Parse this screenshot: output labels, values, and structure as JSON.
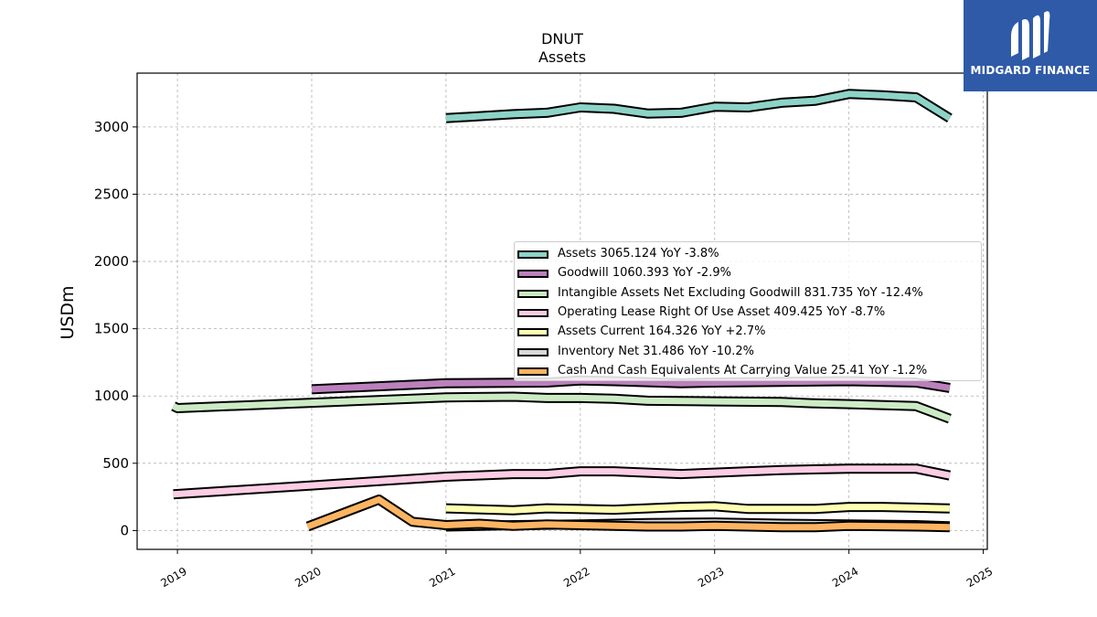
{
  "header": {
    "ticker": "DNUT",
    "subtitle": "Assets"
  },
  "logo": {
    "text": "MIDGARD FINANCE",
    "color": "#2f5aa8"
  },
  "chart_data": {
    "type": "line",
    "ylabel": "USDm",
    "xlabel": "",
    "ylim": [
      -140,
      3400
    ],
    "xlim": [
      2018.7,
      2025.03
    ],
    "x_ticks": [
      "2019",
      "2020",
      "2021",
      "2022",
      "2023",
      "2024",
      "2025"
    ],
    "y_ticks": [
      "0",
      "500",
      "1000",
      "1500",
      "2000",
      "2500",
      "3000"
    ],
    "grid": true,
    "legend_position": "center-right",
    "series": [
      {
        "name": "Assets",
        "color": "#8dd3c7",
        "legend": "Assets  3065.124 YoY -3.8%",
        "points": [
          [
            2021.0,
            3065
          ],
          [
            2021.5,
            3095
          ],
          [
            2021.75,
            3105
          ],
          [
            2022.0,
            3145
          ],
          [
            2022.25,
            3135
          ],
          [
            2022.5,
            3100
          ],
          [
            2022.75,
            3105
          ],
          [
            2023.0,
            3150
          ],
          [
            2023.25,
            3145
          ],
          [
            2023.5,
            3180
          ],
          [
            2023.75,
            3195
          ],
          [
            2024.0,
            3245
          ],
          [
            2024.25,
            3235
          ],
          [
            2024.5,
            3220
          ],
          [
            2024.75,
            3065
          ]
        ]
      },
      {
        "name": "Goodwill",
        "color": "#bc80bd",
        "legend": "Goodwill  1060.393 YoY -2.9%",
        "points": [
          [
            2020.0,
            1050
          ],
          [
            2021.0,
            1095
          ],
          [
            2021.75,
            1100
          ],
          [
            2022.0,
            1115
          ],
          [
            2022.25,
            1110
          ],
          [
            2022.75,
            1095
          ],
          [
            2023.0,
            1100
          ],
          [
            2023.5,
            1105
          ],
          [
            2024.0,
            1110
          ],
          [
            2024.5,
            1100
          ],
          [
            2024.75,
            1060
          ]
        ]
      },
      {
        "name": "Intangible Assets Net Excluding Goodwill",
        "color": "#ccebc5",
        "legend": "Intangible Assets Net Excluding Goodwill  831.735 YoY -12.4%",
        "points": [
          [
            2018.97,
            925
          ],
          [
            2019.0,
            910
          ],
          [
            2020.0,
            950
          ],
          [
            2021.0,
            990
          ],
          [
            2021.5,
            995
          ],
          [
            2021.75,
            985
          ],
          [
            2022.0,
            985
          ],
          [
            2022.25,
            980
          ],
          [
            2022.5,
            965
          ],
          [
            2023.0,
            960
          ],
          [
            2023.5,
            955
          ],
          [
            2023.75,
            945
          ],
          [
            2024.0,
            940
          ],
          [
            2024.5,
            925
          ],
          [
            2024.75,
            831
          ]
        ]
      },
      {
        "name": "Operating Lease Right Of Use Asset",
        "color": "#fccde5",
        "legend": "Operating Lease Right Of Use Asset  409.425 YoY -8.7%",
        "points": [
          [
            2018.97,
            270
          ],
          [
            2020.0,
            335
          ],
          [
            2021.0,
            400
          ],
          [
            2021.5,
            420
          ],
          [
            2021.75,
            420
          ],
          [
            2022.0,
            440
          ],
          [
            2022.25,
            440
          ],
          [
            2022.5,
            430
          ],
          [
            2022.75,
            420
          ],
          [
            2023.0,
            430
          ],
          [
            2023.25,
            440
          ],
          [
            2023.5,
            450
          ],
          [
            2024.0,
            460
          ],
          [
            2024.5,
            460
          ],
          [
            2024.75,
            409
          ]
        ]
      },
      {
        "name": "Assets Current",
        "color": "#ffffb3",
        "legend": "Assets Current  164.326 YoY +2.7%",
        "points": [
          [
            2021.0,
            165
          ],
          [
            2021.5,
            150
          ],
          [
            2021.75,
            165
          ],
          [
            2022.25,
            155
          ],
          [
            2022.5,
            165
          ],
          [
            2022.75,
            175
          ],
          [
            2023.0,
            180
          ],
          [
            2023.25,
            160
          ],
          [
            2023.5,
            160
          ],
          [
            2023.75,
            160
          ],
          [
            2024.0,
            175
          ],
          [
            2024.25,
            175
          ],
          [
            2024.5,
            170
          ],
          [
            2024.75,
            164
          ]
        ]
      },
      {
        "name": "Inventory Net",
        "color": "#d9d9d9",
        "legend": "Inventory Net  31.486 YoY -10.2%",
        "points": [
          [
            2021.0,
            30
          ],
          [
            2021.5,
            40
          ],
          [
            2022.0,
            45
          ],
          [
            2022.5,
            55
          ],
          [
            2023.0,
            60
          ],
          [
            2023.5,
            50
          ],
          [
            2024.0,
            45
          ],
          [
            2024.5,
            40
          ],
          [
            2024.75,
            31
          ]
        ]
      },
      {
        "name": "Cash And Cash Equivalents At Carrying Value",
        "color": "#fdb462",
        "legend": "Cash And Cash Equivalents At Carrying Value  25.41 YoY -1.2%",
        "points": [
          [
            2019.97,
            30
          ],
          [
            2020.5,
            230
          ],
          [
            2020.75,
            65
          ],
          [
            2021.0,
            40
          ],
          [
            2021.25,
            50
          ],
          [
            2021.5,
            35
          ],
          [
            2021.75,
            45
          ],
          [
            2022.0,
            40
          ],
          [
            2022.25,
            35
          ],
          [
            2022.5,
            30
          ],
          [
            2022.75,
            30
          ],
          [
            2023.0,
            35
          ],
          [
            2023.25,
            30
          ],
          [
            2023.5,
            25
          ],
          [
            2023.75,
            25
          ],
          [
            2024.0,
            35
          ],
          [
            2024.5,
            30
          ],
          [
            2024.75,
            25
          ]
        ]
      }
    ]
  }
}
